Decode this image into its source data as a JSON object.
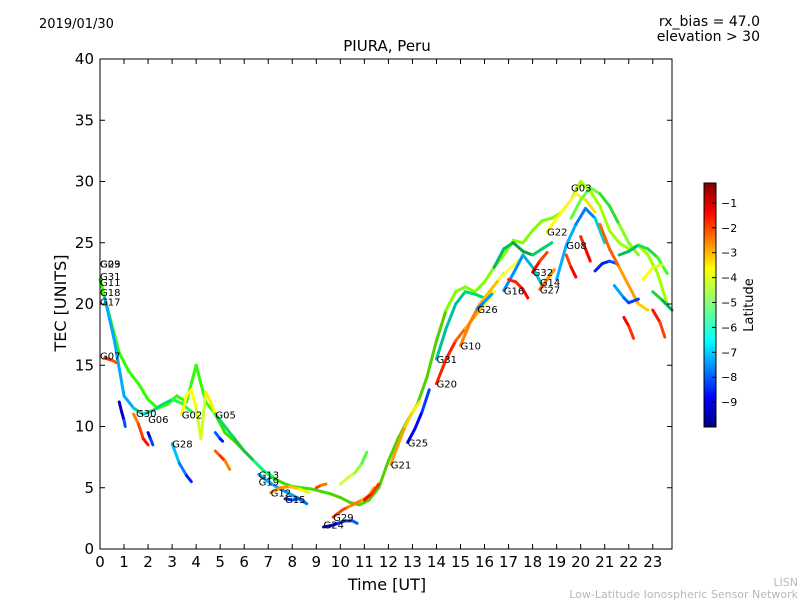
{
  "header": {
    "date": "2019/01/30",
    "title": "PIURA, Peru",
    "rx_bias": "rx_bias = 47.0",
    "elevation": "elevation > 30"
  },
  "footer": {
    "line1": "LISN",
    "line2": "Low-Latitude Ionospheric Sensor Network"
  },
  "colors": {
    "colormap": [
      "#00007f",
      "#0000ff",
      "#007fff",
      "#00ffff",
      "#7fff7f",
      "#ffff00",
      "#ff7f00",
      "#ff0000",
      "#7f0000"
    ],
    "note": "jet-like colormap for latitude"
  },
  "chart_data": {
    "type": "scatter",
    "title": "PIURA, Peru",
    "xlabel": "Time [UT]",
    "ylabel": "TEC [UNITS]",
    "xlim": [
      0,
      23.8
    ],
    "ylim": [
      0,
      40
    ],
    "xticks": [
      0,
      1,
      2,
      3,
      4,
      5,
      6,
      7,
      8,
      9,
      10,
      11,
      12,
      13,
      14,
      15,
      16,
      17,
      18,
      19,
      20,
      21,
      22,
      23
    ],
    "yticks": [
      0,
      5,
      10,
      15,
      20,
      25,
      30,
      35,
      40
    ],
    "colorbar": {
      "label": "Latitude",
      "range": [
        -10,
        -0.2
      ],
      "ticks": [
        -1,
        -2,
        -3,
        -4,
        -5,
        -6,
        -7,
        -8,
        -9
      ]
    },
    "satellite_labels": [
      {
        "name": "G23",
        "x": 0.0,
        "y": 23.3
      },
      {
        "name": "G09",
        "x": 0.0,
        "y": 23.3
      },
      {
        "name": "G31",
        "x": 0.0,
        "y": 22.3
      },
      {
        "name": "G11",
        "x": 0.0,
        "y": 21.8
      },
      {
        "name": "G18",
        "x": 0.0,
        "y": 21.0
      },
      {
        "name": "G17",
        "x": 0.0,
        "y": 20.2
      },
      {
        "name": "G07",
        "x": 0.0,
        "y": 15.8
      },
      {
        "name": "G30",
        "x": 1.5,
        "y": 11.1
      },
      {
        "name": "G06",
        "x": 2.0,
        "y": 10.6
      },
      {
        "name": "G28",
        "x": 3.0,
        "y": 8.6
      },
      {
        "name": "G02",
        "x": 3.4,
        "y": 11.0
      },
      {
        "name": "G05",
        "x": 4.8,
        "y": 11.0
      },
      {
        "name": "G13",
        "x": 6.6,
        "y": 6.1
      },
      {
        "name": "G19",
        "x": 6.6,
        "y": 5.5
      },
      {
        "name": "G12",
        "x": 7.1,
        "y": 4.6
      },
      {
        "name": "G15",
        "x": 7.7,
        "y": 4.1
      },
      {
        "name": "G29",
        "x": 9.7,
        "y": 2.6
      },
      {
        "name": "G24",
        "x": 9.3,
        "y": 2.0
      },
      {
        "name": "G21",
        "x": 12.1,
        "y": 6.9
      },
      {
        "name": "G25",
        "x": 12.8,
        "y": 8.7
      },
      {
        "name": "G20",
        "x": 14.0,
        "y": 13.5
      },
      {
        "name": "G31",
        "x": 14.0,
        "y": 15.5
      },
      {
        "name": "G10",
        "x": 15.0,
        "y": 16.6
      },
      {
        "name": "G26",
        "x": 15.7,
        "y": 19.6
      },
      {
        "name": "G16",
        "x": 16.8,
        "y": 21.1
      },
      {
        "name": "G32",
        "x": 18.0,
        "y": 22.6
      },
      {
        "name": "G14",
        "x": 18.3,
        "y": 21.8
      },
      {
        "name": "G27",
        "x": 18.3,
        "y": 21.2
      },
      {
        "name": "G22",
        "x": 18.6,
        "y": 25.9
      },
      {
        "name": "G08",
        "x": 19.4,
        "y": 24.8
      },
      {
        "name": "G03",
        "x": 19.6,
        "y": 29.5
      }
    ],
    "series": [
      {
        "colors": [
          "#2fff00",
          "#3fe000",
          "#52d000",
          "#7fff00",
          "#a0ff00"
        ],
        "x": [
          0.0,
          0.4,
          0.8,
          1.2,
          1.6,
          2.0,
          2.4,
          2.8,
          3.2,
          3.6,
          4.0,
          4.4,
          4.8,
          5.2,
          5.6,
          6.0,
          6.4,
          6.8,
          7.2,
          7.6,
          8.0,
          8.4,
          8.8,
          9.2,
          9.6,
          10.0,
          10.4,
          10.8,
          11.2,
          11.6,
          12.0,
          12.4,
          12.8,
          13.2,
          13.6,
          14.0,
          14.4,
          14.8,
          15.2,
          15.6,
          16.0,
          16.4,
          16.8,
          17.2,
          17.6,
          18.0,
          18.4,
          18.8,
          19.2,
          19.6,
          20.0,
          20.4,
          20.8,
          21.2,
          21.6,
          22.0,
          22.4,
          22.8,
          23.2,
          23.6
        ],
        "y": [
          22.0,
          19.0,
          16.0,
          14.5,
          13.5,
          12.2,
          11.5,
          11.8,
          12.5,
          12.0,
          15.0,
          12.0,
          11.0,
          9.5,
          8.8,
          8.0,
          7.2,
          6.4,
          5.8,
          5.4,
          5.1,
          5.0,
          4.9,
          4.7,
          4.5,
          4.2,
          3.8,
          3.6,
          4.0,
          5.0,
          7.2,
          9.0,
          10.5,
          11.8,
          14.0,
          17.0,
          19.5,
          21.0,
          21.4,
          21.0,
          21.8,
          23.0,
          24.0,
          25.2,
          25.0,
          26.0,
          26.8,
          27.0,
          27.5,
          28.5,
          30.0,
          29.2,
          28.0,
          26.0,
          25.0,
          24.5,
          24.8,
          24.0,
          22.5,
          20.0
        ]
      },
      {
        "colors": [
          "#00aaff",
          "#00ccaa",
          "#00e070",
          "#20ff40"
        ],
        "x": [
          0.2,
          0.6,
          1.0,
          1.4,
          1.8,
          2.2,
          2.6,
          3.0,
          3.4,
          3.8
        ],
        "y": [
          20.5,
          17.0,
          12.5,
          11.5,
          11.0,
          11.3,
          11.8,
          12.2,
          11.9,
          11.2
        ]
      },
      {
        "colors": [
          "#0000c0",
          "#0050ff"
        ],
        "x": [
          0.8,
          0.9,
          1.0,
          1.05
        ],
        "y": [
          12.0,
          11.2,
          10.5,
          10.0
        ]
      },
      {
        "colors": [
          "#ff2000",
          "#ff5000"
        ],
        "x": [
          0.2,
          0.5,
          0.7
        ],
        "y": [
          15.6,
          15.4,
          15.2
        ]
      },
      {
        "colors": [
          "#ff8000",
          "#ff4000",
          "#ff1000"
        ],
        "x": [
          1.4,
          1.6,
          1.8,
          2.0
        ],
        "y": [
          11.0,
          10.2,
          9.0,
          8.5
        ]
      },
      {
        "colors": [
          "#0000d0",
          "#0040ff"
        ],
        "x": [
          2.0,
          2.1,
          2.2
        ],
        "y": [
          9.5,
          9.0,
          8.5
        ]
      },
      {
        "colors": [
          "#00c0ff",
          "#0080ff",
          "#0020ff"
        ],
        "x": [
          3.0,
          3.3,
          3.6,
          3.8
        ],
        "y": [
          8.6,
          7.0,
          6.0,
          5.5
        ]
      },
      {
        "colors": [
          "#ffff00",
          "#d0ff20",
          "#ffef00"
        ],
        "x": [
          3.4,
          3.6,
          3.8,
          4.0,
          4.2,
          4.4,
          4.6,
          4.8
        ],
        "y": [
          11.0,
          12.5,
          13.0,
          11.5,
          9.0,
          12.8,
          12.0,
          11.0
        ]
      },
      {
        "colors": [
          "#ff6000",
          "#ff3000",
          "#ff8000"
        ],
        "x": [
          4.8,
          5.0,
          5.2,
          5.4
        ],
        "y": [
          8.0,
          7.6,
          7.2,
          6.5
        ]
      },
      {
        "colors": [
          "#0060ff",
          "#0010ff"
        ],
        "x": [
          4.8,
          5.0,
          5.1
        ],
        "y": [
          9.5,
          9.0,
          8.8
        ]
      },
      {
        "colors": [
          "#00e060",
          "#20c040",
          "#00ff80"
        ],
        "x": [
          4.8,
          5.2,
          5.6,
          6.0,
          6.4,
          6.8,
          7.2
        ],
        "y": [
          11.0,
          10.0,
          9.0,
          8.0,
          7.2,
          6.4,
          5.9
        ]
      },
      {
        "colors": [
          "#00b0ff",
          "#00a0e0",
          "#0070ff"
        ],
        "x": [
          6.6,
          7.0,
          7.4,
          7.8,
          8.2,
          8.6
        ],
        "y": [
          6.1,
          5.5,
          5.0,
          4.6,
          4.2,
          3.7
        ]
      },
      {
        "colors": [
          "#ff9000",
          "#ffc000",
          "#e0ff00"
        ],
        "x": [
          7.1,
          7.5,
          7.9,
          8.3,
          8.7
        ],
        "y": [
          4.6,
          5.0,
          5.1,
          4.9,
          4.6
        ]
      },
      {
        "colors": [
          "#0030ff",
          "#0050e0"
        ],
        "x": [
          7.7,
          8.0,
          8.3
        ],
        "y": [
          4.1,
          4.0,
          4.1
        ]
      },
      {
        "colors": [
          "#ff4000",
          "#ff7000"
        ],
        "x": [
          9.0,
          9.2,
          9.4
        ],
        "y": [
          5.0,
          5.2,
          5.3
        ]
      },
      {
        "colors": [
          "#0000c0",
          "#0030ff",
          "#0060ff"
        ],
        "x": [
          9.3,
          9.6,
          9.9,
          10.2,
          10.5,
          10.7
        ],
        "y": [
          1.8,
          1.9,
          2.1,
          2.3,
          2.3,
          2.1
        ]
      },
      {
        "colors": [
          "#ff4000",
          "#ff8000",
          "#ffb000"
        ],
        "x": [
          9.7,
          9.9,
          10.1,
          10.3,
          10.6,
          10.9,
          11.2,
          11.4
        ],
        "y": [
          2.6,
          2.9,
          3.2,
          3.4,
          3.7,
          4.0,
          4.4,
          5.0
        ]
      },
      {
        "colors": [
          "#d0ff40",
          "#90ff40",
          "#50ff40"
        ],
        "x": [
          10.0,
          10.3,
          10.6,
          10.9,
          11.1
        ],
        "y": [
          5.3,
          5.8,
          6.2,
          7.0,
          7.9
        ]
      },
      {
        "colors": [
          "#ff0000",
          "#ff3000",
          "#ff6000"
        ],
        "x": [
          11.0,
          11.3,
          11.6
        ],
        "y": [
          4.0,
          4.5,
          5.3
        ]
      },
      {
        "colors": [
          "#ffa000",
          "#ffd000",
          "#fff000"
        ],
        "x": [
          12.1,
          12.4,
          12.7,
          13.0,
          13.3
        ],
        "y": [
          6.9,
          8.5,
          10.0,
          11.2,
          12.0
        ]
      },
      {
        "colors": [
          "#0000ff",
          "#0040ff"
        ],
        "x": [
          12.8,
          13.1,
          13.4,
          13.7
        ],
        "y": [
          8.7,
          9.8,
          11.2,
          13.0
        ]
      },
      {
        "colors": [
          "#ff2000",
          "#ff6000",
          "#ffb000",
          "#ffff00"
        ],
        "x": [
          14.0,
          14.4,
          14.8,
          15.2,
          15.6,
          16.0,
          16.4
        ],
        "y": [
          13.5,
          15.5,
          17.0,
          18.0,
          19.0,
          20.0,
          21.0
        ]
      },
      {
        "colors": [
          "#00c0a0",
          "#00e060",
          "#60ff40"
        ],
        "x": [
          14.0,
          14.4,
          14.8,
          15.2,
          15.6,
          16.0,
          16.4,
          16.8
        ],
        "y": [
          15.5,
          18.0,
          20.0,
          21.0,
          20.8,
          20.5,
          21.5,
          22.5
        ]
      },
      {
        "colors": [
          "#ff8000",
          "#ffc000",
          "#ffff40"
        ],
        "x": [
          15.0,
          15.4,
          15.8,
          16.2,
          16.6,
          17.0,
          17.4
        ],
        "y": [
          16.6,
          18.5,
          20.0,
          21.0,
          22.0,
          22.8,
          23.5
        ]
      },
      {
        "colors": [
          "#0080ff",
          "#00a0ff"
        ],
        "x": [
          15.7,
          16.0,
          16.3
        ],
        "y": [
          19.6,
          20.2,
          20.8
        ]
      },
      {
        "colors": [
          "#0090ff",
          "#00b0e0",
          "#10c0c0"
        ],
        "x": [
          16.8,
          17.2,
          17.6,
          18.0,
          18.4
        ],
        "y": [
          21.1,
          22.5,
          24.0,
          23.0,
          21.5
        ]
      },
      {
        "colors": [
          "#ff2000",
          "#ff0000"
        ],
        "x": [
          17.0,
          17.3,
          17.6,
          17.8
        ],
        "y": [
          22.0,
          21.8,
          21.2,
          20.5
        ]
      },
      {
        "colors": [
          "#00c060",
          "#10a040",
          "#00d070"
        ],
        "x": [
          16.4,
          16.8,
          17.2,
          17.6,
          18.0,
          18.4,
          18.8
        ],
        "y": [
          23.0,
          24.5,
          25.0,
          24.3,
          24.0,
          24.5,
          25.0
        ]
      },
      {
        "colors": [
          "#ff0000",
          "#ff4000"
        ],
        "x": [
          18.0,
          18.3,
          18.6
        ],
        "y": [
          22.6,
          23.5,
          24.2
        ]
      },
      {
        "colors": [
          "#ff6000",
          "#ff9000"
        ],
        "x": [
          18.3,
          18.6,
          18.9
        ],
        "y": [
          21.2,
          22.0,
          22.8
        ]
      },
      {
        "colors": [
          "#00b0ff",
          "#0080ff",
          "#00d0d0"
        ],
        "x": [
          19.0,
          19.4,
          19.8,
          20.2,
          20.6,
          21.0
        ],
        "y": [
          22.0,
          24.8,
          26.5,
          27.8,
          27.0,
          25.0
        ]
      },
      {
        "colors": [
          "#ffff00",
          "#fff040",
          "#ffe000"
        ],
        "x": [
          18.6,
          19.0,
          19.4,
          19.8,
          20.2,
          20.6
        ],
        "y": [
          25.9,
          27.0,
          28.0,
          29.0,
          28.5,
          27.5
        ]
      },
      {
        "colors": [
          "#60ff40",
          "#30e030",
          "#80ff20"
        ],
        "x": [
          19.6,
          20.0,
          20.4,
          20.8,
          21.2,
          21.6,
          22.0,
          22.4
        ],
        "y": [
          27.0,
          28.5,
          29.5,
          29.0,
          28.0,
          26.5,
          25.0,
          24.0
        ]
      },
      {
        "colors": [
          "#ff2000",
          "#ff0000"
        ],
        "x": [
          20.0,
          20.2,
          20.4
        ],
        "y": [
          25.5,
          24.5,
          23.5
        ]
      },
      {
        "colors": [
          "#ff4000",
          "#ff0000"
        ],
        "x": [
          19.4,
          19.6,
          19.8
        ],
        "y": [
          24.0,
          23.0,
          22.2
        ]
      },
      {
        "colors": [
          "#0020ff",
          "#0050ff"
        ],
        "x": [
          20.6,
          20.9,
          21.2,
          21.5
        ],
        "y": [
          22.7,
          23.3,
          23.5,
          23.3
        ]
      },
      {
        "colors": [
          "#ff6000",
          "#ffa000",
          "#ffd000"
        ],
        "x": [
          20.8,
          21.2,
          21.6,
          22.0,
          22.4,
          22.8
        ],
        "y": [
          26.5,
          24.5,
          23.0,
          21.5,
          20.0,
          19.5
        ]
      },
      {
        "colors": [
          "#00c060",
          "#20e040",
          "#40ff20"
        ],
        "x": [
          21.6,
          22.0,
          22.4,
          22.8,
          23.2,
          23.6
        ],
        "y": [
          24.0,
          24.3,
          24.8,
          24.5,
          23.8,
          22.5
        ]
      },
      {
        "colors": [
          "#00a0ff",
          "#0060ff",
          "#0040ff"
        ],
        "x": [
          21.4,
          21.8,
          22.0,
          22.4
        ],
        "y": [
          21.5,
          20.5,
          20.1,
          20.4
        ]
      },
      {
        "colors": [
          "#ffff00",
          "#e0ff20"
        ],
        "x": [
          22.6,
          23.0,
          23.4
        ],
        "y": [
          22.0,
          23.0,
          23.2
        ]
      },
      {
        "colors": [
          "#ff1000",
          "#ff4000"
        ],
        "x": [
          23.0,
          23.3,
          23.5
        ],
        "y": [
          19.5,
          18.5,
          17.3
        ]
      },
      {
        "colors": [
          "#ff0000",
          "#ff3000"
        ],
        "x": [
          21.8,
          22.0,
          22.2
        ],
        "y": [
          18.9,
          18.2,
          17.2
        ]
      },
      {
        "colors": [
          "#20d040",
          "#00b060"
        ],
        "x": [
          23.0,
          23.4,
          23.8
        ],
        "y": [
          21.0,
          20.3,
          19.5
        ]
      }
    ]
  }
}
